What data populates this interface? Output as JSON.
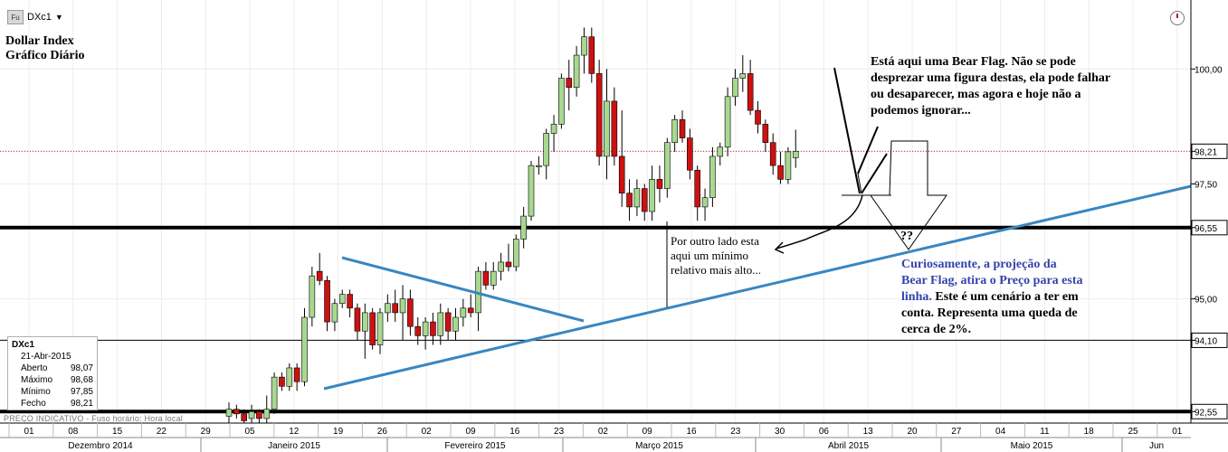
{
  "toolbar": {
    "instrument": "DXc1",
    "type_badge": "Fu",
    "dropdown_icon": "chevron-down-icon",
    "clock_icon": "clock-icon"
  },
  "chart_title": {
    "line1": "Dollar Index",
    "line2": "Gráfico Diário"
  },
  "info_box": {
    "symbol": "DXc1",
    "date": "21-Abr-2015",
    "rows": [
      {
        "label": "Aberto",
        "value": "98,07"
      },
      {
        "label": "Máximo",
        "value": "98,68"
      },
      {
        "label": "Mínimo",
        "value": "97,85"
      },
      {
        "label": "Fecho",
        "value": "98,21"
      }
    ]
  },
  "footer_note": "PREÇO INDICATIVO - Fuso horário: Hora local",
  "annotations": {
    "bear_flag": [
      "Está aqui uma Bear Flag. Não se pode",
      "desprezar uma figura destas, ela pode falhar",
      "ou desaparecer, mas agora e hoje não a",
      "podemos ignorar..."
    ],
    "minimum": [
      "Por outro lado esta",
      "aqui um mínimo",
      "relativo mais alto..."
    ],
    "projection_blue": [
      "Curiosamente, a projeção da",
      "Bear Flag, atira o Preço para esta",
      "linha."
    ],
    "projection_black_1": "Este é um cenário a ter em",
    "projection_black_2": [
      "conta. Representa uma queda de",
      "cerca de 2%."
    ],
    "question": "??"
  },
  "chart_data": {
    "type": "candlestick",
    "ylim": [
      92.3,
      101.5
    ],
    "y_ticks": [
      {
        "value": 100.0,
        "label": "100,00"
      },
      {
        "value": 98.21,
        "label": "98,21"
      },
      {
        "value": 97.5,
        "label": "97,50"
      },
      {
        "value": 96.55,
        "label": "96,55"
      },
      {
        "value": 95.0,
        "label": "95,00"
      },
      {
        "value": 94.1,
        "label": "94,10"
      },
      {
        "value": 92.55,
        "label": "92,55"
      }
    ],
    "x_day_labels": [
      "01",
      "08",
      "15",
      "22",
      "29",
      "05",
      "12",
      "19",
      "26",
      "02",
      "09",
      "16",
      "23",
      "02",
      "09",
      "16",
      "23",
      "30",
      "06",
      "13",
      "20",
      "27",
      "04",
      "11",
      "18",
      "25",
      "01"
    ],
    "x_month_labels": [
      "Dezembro 2014",
      "Janeiro 2015",
      "Fevereiro 2015",
      "Março 2015",
      "Abril 2015",
      "Maio 2015",
      "Jun"
    ],
    "last_price": 98.21,
    "horizontal_lines": [
      {
        "value": 96.55,
        "style": "thick-black"
      },
      {
        "value": 94.1,
        "style": "thin-black"
      },
      {
        "value": 92.55,
        "style": "thick-black"
      },
      {
        "value": 98.21,
        "style": "dotted-red"
      }
    ],
    "colors": {
      "up": "#a8d890",
      "down": "#cc1111",
      "trendline": "#3a86c0"
    },
    "candles": [
      {
        "o": 92.45,
        "h": 92.75,
        "l": 92.3,
        "c": 92.6
      },
      {
        "o": 92.6,
        "h": 92.7,
        "l": 92.4,
        "c": 92.5
      },
      {
        "o": 92.5,
        "h": 92.6,
        "l": 92.3,
        "c": 92.35
      },
      {
        "o": 92.4,
        "h": 92.7,
        "l": 92.3,
        "c": 92.55
      },
      {
        "o": 92.55,
        "h": 92.6,
        "l": 92.3,
        "c": 92.4
      },
      {
        "o": 92.4,
        "h": 92.9,
        "l": 92.3,
        "c": 92.6
      },
      {
        "o": 92.6,
        "h": 93.4,
        "l": 92.5,
        "c": 93.3
      },
      {
        "o": 93.3,
        "h": 93.4,
        "l": 93.0,
        "c": 93.1
      },
      {
        "o": 93.1,
        "h": 93.6,
        "l": 93.0,
        "c": 93.5
      },
      {
        "o": 93.5,
        "h": 93.6,
        "l": 93.0,
        "c": 93.2
      },
      {
        "o": 93.2,
        "h": 94.8,
        "l": 93.1,
        "c": 94.6
      },
      {
        "o": 94.6,
        "h": 95.7,
        "l": 94.4,
        "c": 95.5
      },
      {
        "o": 95.6,
        "h": 96.0,
        "l": 95.3,
        "c": 95.4
      },
      {
        "o": 95.4,
        "h": 95.5,
        "l": 94.3,
        "c": 94.5
      },
      {
        "o": 94.5,
        "h": 95.0,
        "l": 94.3,
        "c": 94.9
      },
      {
        "o": 94.9,
        "h": 95.2,
        "l": 94.8,
        "c": 95.1
      },
      {
        "o": 95.1,
        "h": 95.2,
        "l": 94.6,
        "c": 94.8
      },
      {
        "o": 94.8,
        "h": 94.9,
        "l": 94.1,
        "c": 94.3
      },
      {
        "o": 94.3,
        "h": 94.9,
        "l": 93.7,
        "c": 94.7
      },
      {
        "o": 94.7,
        "h": 94.8,
        "l": 93.9,
        "c": 94.0
      },
      {
        "o": 94.0,
        "h": 94.8,
        "l": 93.8,
        "c": 94.7
      },
      {
        "o": 94.7,
        "h": 95.1,
        "l": 94.5,
        "c": 94.9
      },
      {
        "o": 94.9,
        "h": 95.2,
        "l": 94.5,
        "c": 94.7
      },
      {
        "o": 94.7,
        "h": 95.3,
        "l": 94.1,
        "c": 95.0
      },
      {
        "o": 95.0,
        "h": 95.2,
        "l": 94.2,
        "c": 94.4
      },
      {
        "o": 94.4,
        "h": 94.6,
        "l": 94.0,
        "c": 94.2
      },
      {
        "o": 94.2,
        "h": 94.6,
        "l": 93.9,
        "c": 94.5
      },
      {
        "o": 94.5,
        "h": 94.7,
        "l": 94.0,
        "c": 94.2
      },
      {
        "o": 94.2,
        "h": 94.9,
        "l": 94.0,
        "c": 94.7
      },
      {
        "o": 94.7,
        "h": 94.8,
        "l": 94.1,
        "c": 94.3
      },
      {
        "o": 94.3,
        "h": 94.8,
        "l": 94.1,
        "c": 94.6
      },
      {
        "o": 94.6,
        "h": 95.0,
        "l": 94.4,
        "c": 94.8
      },
      {
        "o": 94.8,
        "h": 95.1,
        "l": 94.6,
        "c": 94.7
      },
      {
        "o": 94.7,
        "h": 95.7,
        "l": 94.3,
        "c": 95.6
      },
      {
        "o": 95.6,
        "h": 95.8,
        "l": 95.2,
        "c": 95.3
      },
      {
        "o": 95.3,
        "h": 95.8,
        "l": 95.2,
        "c": 95.6
      },
      {
        "o": 95.6,
        "h": 96.0,
        "l": 95.4,
        "c": 95.8
      },
      {
        "o": 95.8,
        "h": 96.2,
        "l": 95.6,
        "c": 95.7
      },
      {
        "o": 95.7,
        "h": 96.4,
        "l": 95.6,
        "c": 96.3
      },
      {
        "o": 96.3,
        "h": 97.0,
        "l": 96.1,
        "c": 96.8
      },
      {
        "o": 96.8,
        "h": 98.0,
        "l": 96.7,
        "c": 97.9
      },
      {
        "o": 97.9,
        "h": 98.1,
        "l": 97.7,
        "c": 97.9
      },
      {
        "o": 97.9,
        "h": 98.7,
        "l": 97.6,
        "c": 98.6
      },
      {
        "o": 98.6,
        "h": 99.0,
        "l": 98.2,
        "c": 98.8
      },
      {
        "o": 98.8,
        "h": 99.9,
        "l": 98.7,
        "c": 99.8
      },
      {
        "o": 99.8,
        "h": 100.2,
        "l": 99.1,
        "c": 99.6
      },
      {
        "o": 99.6,
        "h": 100.5,
        "l": 99.4,
        "c": 100.3
      },
      {
        "o": 100.3,
        "h": 100.9,
        "l": 99.9,
        "c": 100.7
      },
      {
        "o": 100.7,
        "h": 100.9,
        "l": 99.7,
        "c": 99.9
      },
      {
        "o": 99.9,
        "h": 100.2,
        "l": 97.9,
        "c": 98.1
      },
      {
        "o": 98.1,
        "h": 100.0,
        "l": 97.6,
        "c": 99.3
      },
      {
        "o": 99.3,
        "h": 99.6,
        "l": 97.9,
        "c": 98.1
      },
      {
        "o": 98.1,
        "h": 99.1,
        "l": 97.0,
        "c": 97.3
      },
      {
        "o": 97.3,
        "h": 97.6,
        "l": 96.7,
        "c": 97.0
      },
      {
        "o": 97.0,
        "h": 97.6,
        "l": 96.8,
        "c": 97.4
      },
      {
        "o": 97.4,
        "h": 97.5,
        "l": 96.7,
        "c": 96.9
      },
      {
        "o": 96.9,
        "h": 97.9,
        "l": 96.7,
        "c": 97.6
      },
      {
        "o": 97.6,
        "h": 97.9,
        "l": 97.1,
        "c": 97.4
      },
      {
        "o": 97.4,
        "h": 98.5,
        "l": 97.2,
        "c": 98.4
      },
      {
        "o": 98.4,
        "h": 99.0,
        "l": 98.2,
        "c": 98.9
      },
      {
        "o": 98.9,
        "h": 99.1,
        "l": 98.4,
        "c": 98.5
      },
      {
        "o": 98.5,
        "h": 98.7,
        "l": 97.6,
        "c": 97.8
      },
      {
        "o": 97.8,
        "h": 97.9,
        "l": 96.7,
        "c": 97.0
      },
      {
        "o": 97.0,
        "h": 97.4,
        "l": 96.7,
        "c": 97.2
      },
      {
        "o": 97.2,
        "h": 98.3,
        "l": 97.0,
        "c": 98.1
      },
      {
        "o": 98.1,
        "h": 98.4,
        "l": 97.9,
        "c": 98.3
      },
      {
        "o": 98.3,
        "h": 99.6,
        "l": 98.1,
        "c": 99.4
      },
      {
        "o": 99.4,
        "h": 100.0,
        "l": 99.2,
        "c": 99.8
      },
      {
        "o": 99.8,
        "h": 100.3,
        "l": 99.5,
        "c": 99.9
      },
      {
        "o": 99.9,
        "h": 100.2,
        "l": 99.0,
        "c": 99.1
      },
      {
        "o": 99.1,
        "h": 99.3,
        "l": 98.6,
        "c": 98.8
      },
      {
        "o": 98.8,
        "h": 98.9,
        "l": 98.2,
        "c": 98.4
      },
      {
        "o": 98.4,
        "h": 98.6,
        "l": 97.7,
        "c": 97.9
      },
      {
        "o": 97.9,
        "h": 98.2,
        "l": 97.5,
        "c": 97.6
      },
      {
        "o": 97.6,
        "h": 98.3,
        "l": 97.5,
        "c": 98.2
      },
      {
        "o": 98.07,
        "h": 98.68,
        "l": 97.85,
        "c": 98.21
      }
    ]
  }
}
